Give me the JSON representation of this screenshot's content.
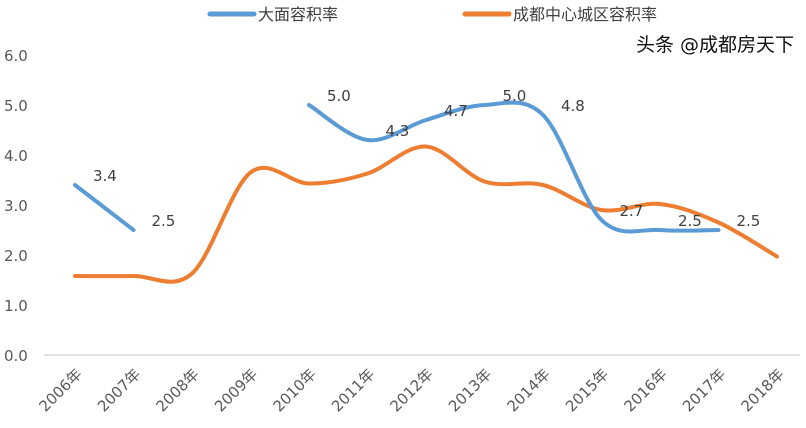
{
  "chart_data": {
    "type": "line",
    "categories": [
      "2006年",
      "2007年",
      "2008年",
      "2009年",
      "2010年",
      "2011年",
      "2012年",
      "2013年",
      "2014年",
      "2015年",
      "2016年",
      "2017年",
      "2018年"
    ],
    "ylim": [
      0,
      6
    ],
    "yticks": [
      "0.0",
      "1.0",
      "2.0",
      "3.0",
      "4.0",
      "5.0",
      "6.0"
    ],
    "grid": false,
    "legend_position": "top",
    "series": [
      {
        "name": "大面容积率",
        "color": "#5B9BD5",
        "values": [
          3.4,
          2.5,
          null,
          null,
          5.0,
          4.3,
          4.7,
          5.0,
          4.8,
          2.7,
          2.5,
          2.5,
          null
        ],
        "labels": [
          "3.4",
          "2.5",
          null,
          null,
          "5.0",
          "4.3",
          "4.7",
          "5.0",
          "4.8",
          "2.7",
          "2.5",
          "2.5",
          null
        ]
      },
      {
        "name": "成都中心城区容积率",
        "color": "#ED7D31",
        "values": [
          1.58,
          1.58,
          1.63,
          3.65,
          3.43,
          3.63,
          4.17,
          3.47,
          3.4,
          2.9,
          3.02,
          2.65,
          1.97
        ]
      }
    ]
  },
  "watermark": "头条 @成都房天下"
}
